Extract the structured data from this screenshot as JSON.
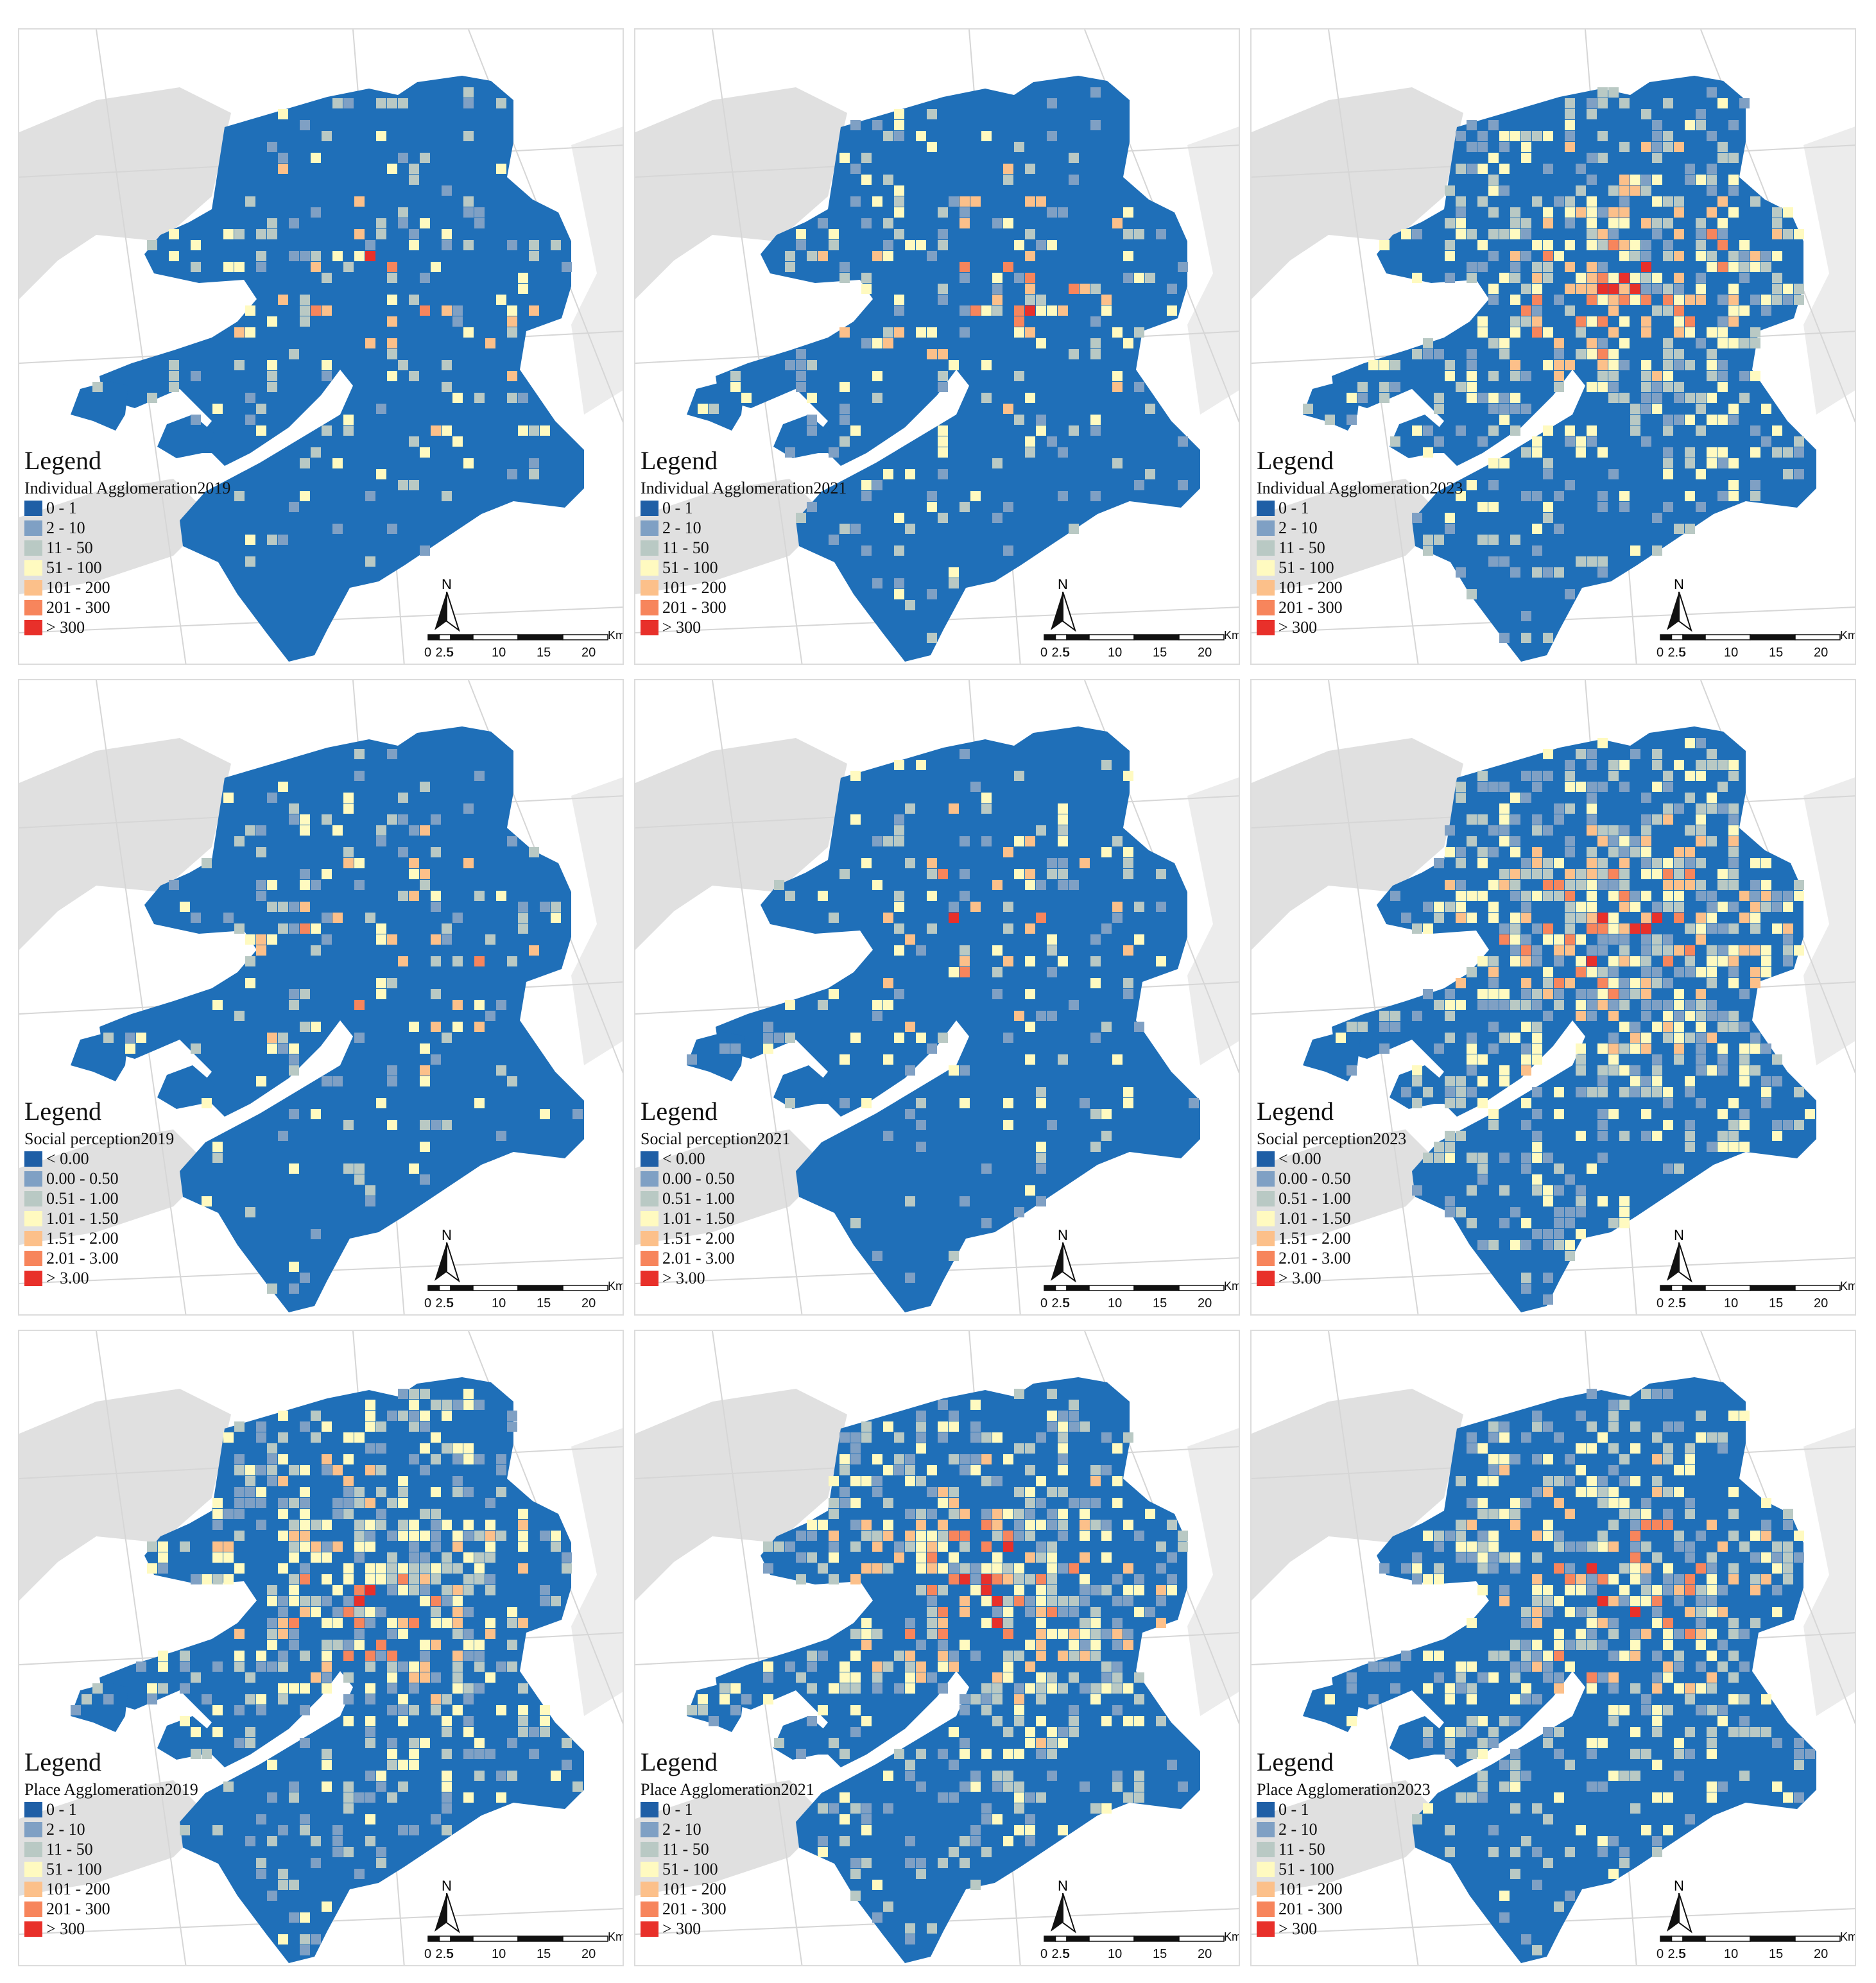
{
  "legend_heading": "Legend",
  "colors": {
    "background_land": "#e0e0e0",
    "study_area_base": "#1f6fb8",
    "road": "#ffffff",
    "class_colors": [
      "#1f5fa6",
      "#7fa0c4",
      "#b9c9c4",
      "#fffac0",
      "#fcc08a",
      "#f7855c",
      "#e8302a"
    ]
  },
  "scale_bar": {
    "unit": "Km",
    "ticks": [
      "0",
      "2.5",
      "5",
      "10",
      "15",
      "20"
    ]
  },
  "north_arrow": {
    "label": "N",
    "icon": "north-arrow-icon"
  },
  "rows": [
    {
      "name": "individual-agglomeration",
      "classes": [
        "0 - 1",
        "2 - 10",
        "11 - 50",
        "51 - 100",
        "101 - 200",
        "201 - 300",
        "> 300"
      ],
      "panels": [
        {
          "title": "Individual Agglomeration2019",
          "intensity": 0.1
        },
        {
          "title": "Individual Agglomeration2021",
          "intensity": 0.14
        },
        {
          "title": "Individual Agglomeration2023",
          "intensity": 0.3
        }
      ]
    },
    {
      "name": "social-perception",
      "classes": [
        "< 0.00",
        "0.00 - 0.50",
        "0.51 - 1.00",
        "1.01 - 1.50",
        "1.51 - 2.00",
        "2.01 - 3.00",
        "> 3.00"
      ],
      "panels": [
        {
          "title": "Social perception2019",
          "intensity": 0.1
        },
        {
          "title": "Social perception2021",
          "intensity": 0.11
        },
        {
          "title": "Social perception2023",
          "intensity": 0.38
        }
      ]
    },
    {
      "name": "place-agglomeration",
      "classes": [
        "0 - 1",
        "2 - 10",
        "11 - 50",
        "51 - 100",
        "101 - 200",
        "201 - 300",
        "> 300"
      ],
      "panels": [
        {
          "title": "Place Agglomeration2019",
          "intensity": 0.32
        },
        {
          "title": "Place Agglomeration2021",
          "intensity": 0.3
        },
        {
          "title": "Place Agglomeration2023",
          "intensity": 0.31
        }
      ]
    }
  ]
}
